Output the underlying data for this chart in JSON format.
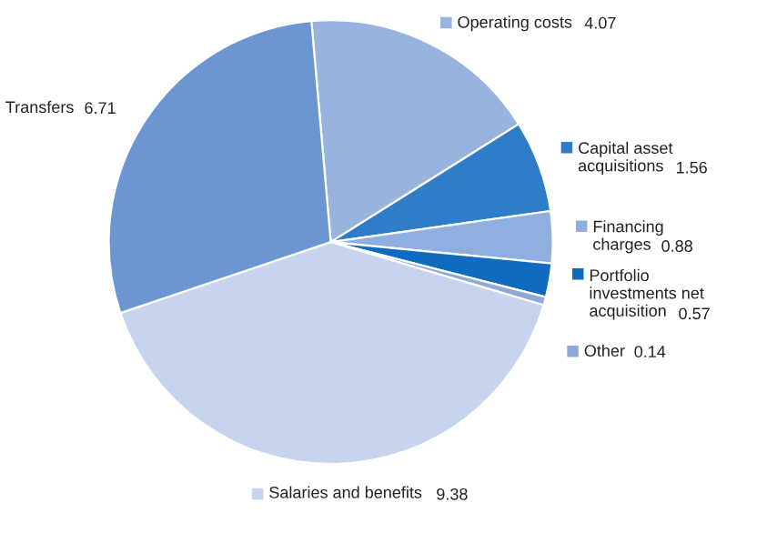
{
  "chart_data": {
    "type": "pie",
    "categories": [
      "Operating costs",
      "Capital asset acquisitions",
      "Financing charges",
      "Portfolio investments net acquisition",
      "Other",
      "Salaries and benefits",
      "Transfers"
    ],
    "values": [
      4.07,
      1.56,
      0.88,
      0.57,
      0.14,
      9.38,
      6.71
    ],
    "colors": [
      "#97b3de",
      "#2f7dc8",
      "#8fb0de",
      "#0f6bc0",
      "#8ea9d8",
      "#c6d4ee",
      "#6b96d1"
    ],
    "data_labels": true,
    "legend": "right"
  }
}
